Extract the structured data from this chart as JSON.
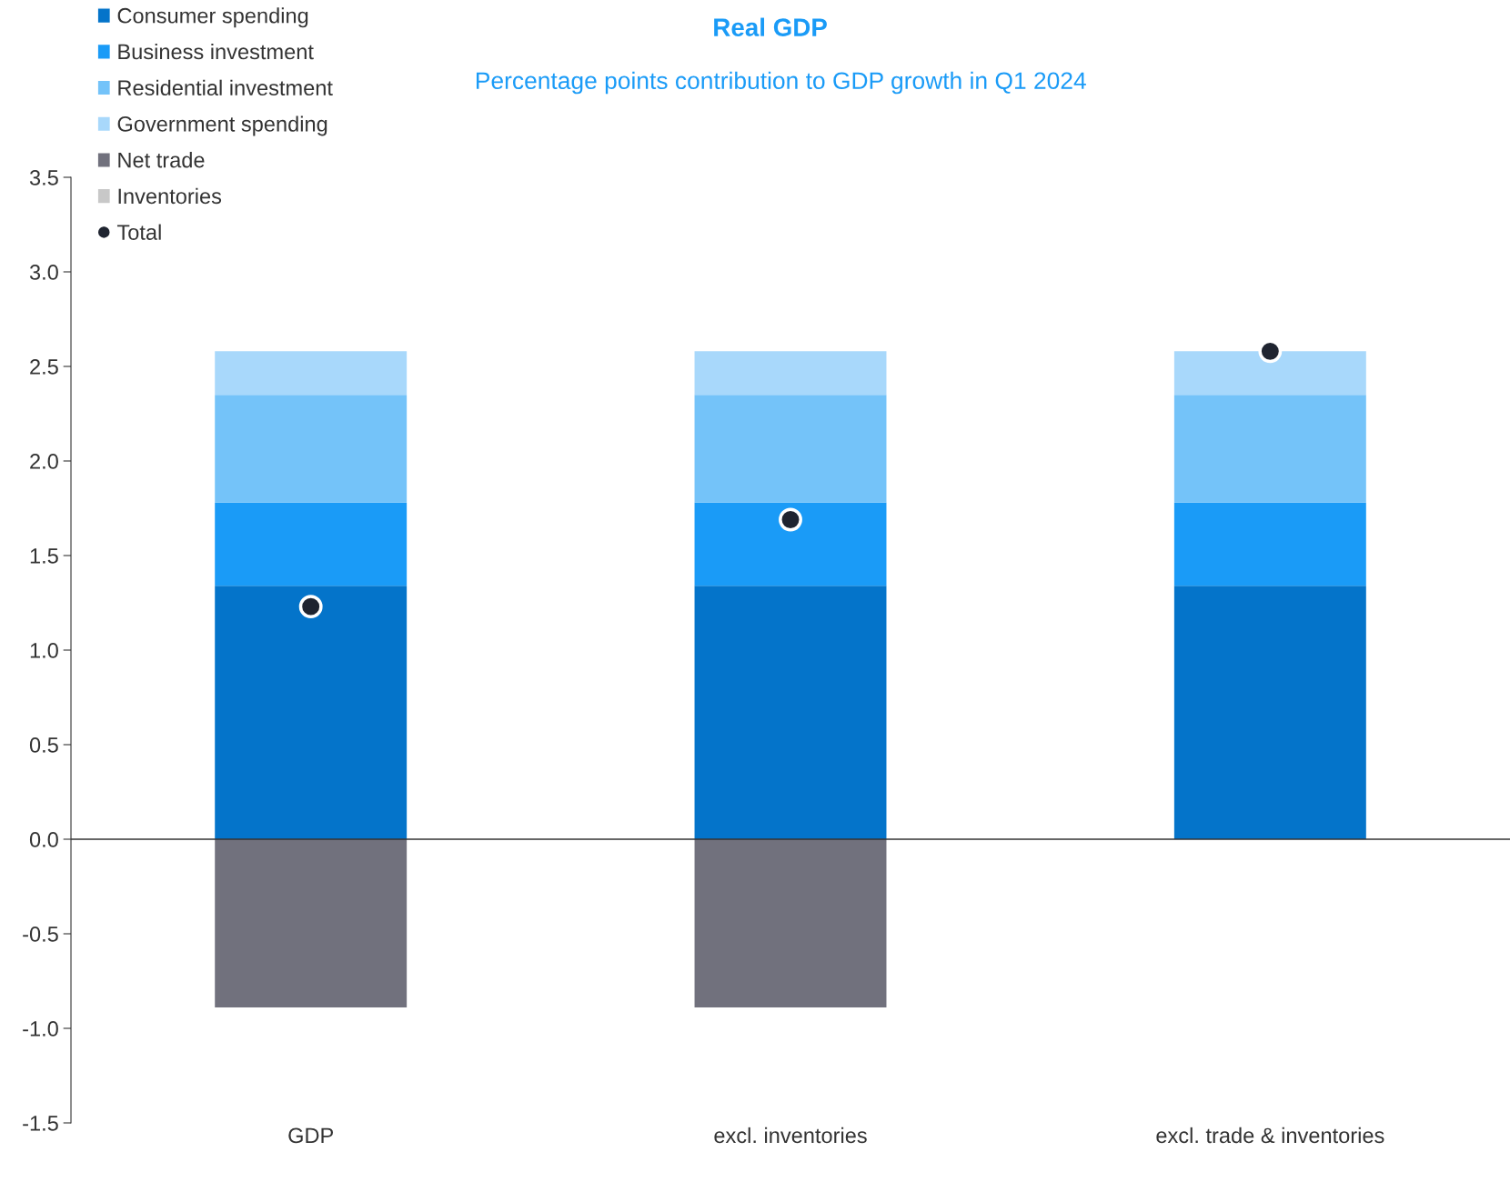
{
  "chart_data": {
    "type": "bar",
    "title": "Real GDP",
    "subtitle": "Percentage points contribution to GDP growth in Q1 2024",
    "categories": [
      "GDP",
      "excl. inventories",
      "excl. trade & inventories"
    ],
    "stacked": true,
    "series": [
      {
        "name": "Consumer spending",
        "color": "#0474ca",
        "values": [
          1.34,
          1.34,
          1.34
        ]
      },
      {
        "name": "Business investment",
        "color": "#1a9bf7",
        "values": [
          0.44,
          0.44,
          0.44
        ]
      },
      {
        "name": "Residential investment",
        "color": "#74c3f9",
        "values": [
          0.57,
          0.57,
          0.57
        ]
      },
      {
        "name": "Government spending",
        "color": "#a8d8fb",
        "values": [
          0.23,
          0.23,
          0.23
        ]
      },
      {
        "name": "Net trade",
        "color": "#71717d",
        "values": [
          -0.89,
          -0.89,
          null
        ]
      },
      {
        "name": "Inventories",
        "color": "#c8c8c8",
        "values": [
          null,
          null,
          null
        ]
      },
      {
        "name": "Total",
        "type": "scatter",
        "color": "#1f2430",
        "marker": "circle",
        "x": [
          "GDP",
          "excl. inventories",
          "excl. trade & inventories"
        ],
        "values": [
          1.23,
          1.69,
          2.58
        ]
      }
    ],
    "ylim": [
      -1.5,
      3.5
    ],
    "yticks": [
      {
        "value": -1.5,
        "label": "-1.5"
      },
      {
        "value": -1.0,
        "label": "-1.0"
      },
      {
        "value": -0.5,
        "label": "-0.5"
      },
      {
        "value": 0.0,
        "label": "0.0"
      },
      {
        "value": 0.5,
        "label": "0.5"
      },
      {
        "value": 1.0,
        "label": "1.0"
      },
      {
        "value": 1.5,
        "label": "1.5"
      },
      {
        "value": 2.0,
        "label": "2.0"
      },
      {
        "value": 2.5,
        "label": "2.5"
      },
      {
        "value": 3.0,
        "label": "3.0"
      },
      {
        "value": 3.5,
        "label": "3.5"
      }
    ],
    "ref_lines": [
      {
        "axis": "y",
        "value": 0,
        "color": "#333333"
      }
    ],
    "grid": false,
    "legend": "top left"
  }
}
